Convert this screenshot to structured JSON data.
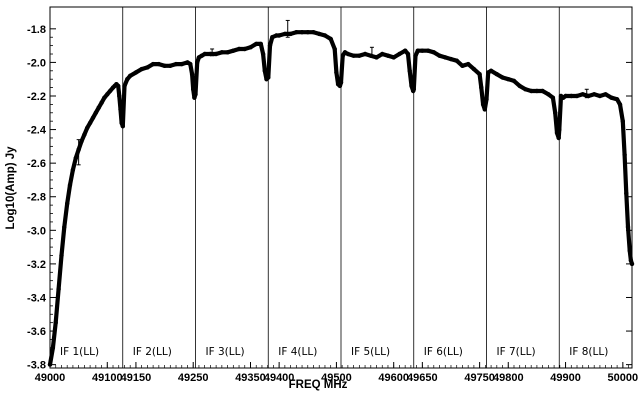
{
  "chart_data": {
    "type": "scatter",
    "title": "",
    "xlabel": "FREQ MHz",
    "ylabel": "Log10(Amp) Jy",
    "xlim": [
      49000,
      50016
    ],
    "ylim": [
      -3.82,
      -1.67
    ],
    "y_ticks": [
      {
        "value": -1.8,
        "label": "-1.8"
      },
      {
        "value": -2.0,
        "label": "-2.0"
      },
      {
        "value": -2.2,
        "label": "-2.2"
      },
      {
        "value": -2.4,
        "label": "-2.4"
      },
      {
        "value": -2.6,
        "label": "-2.6"
      },
      {
        "value": -2.8,
        "label": "-2.8"
      },
      {
        "value": -3.0,
        "label": "-3.0"
      },
      {
        "value": -3.2,
        "label": "-3.2"
      },
      {
        "value": -3.4,
        "label": "-3.4"
      },
      {
        "value": -3.6,
        "label": "-3.6"
      },
      {
        "value": -3.8,
        "label": "-3.8"
      }
    ],
    "x_ticks": [
      {
        "value": 49000,
        "label": "49000"
      },
      {
        "value": 49100,
        "label": "49100"
      },
      {
        "value": 49150,
        "label": "49150"
      },
      {
        "value": 49250,
        "label": "49250"
      },
      {
        "value": 49350,
        "label": "49350"
      },
      {
        "value": 49400,
        "label": "49400"
      },
      {
        "value": 49500,
        "label": "49500"
      },
      {
        "value": 49600,
        "label": "49600"
      },
      {
        "value": 49650,
        "label": "49650"
      },
      {
        "value": 49750,
        "label": "49750"
      },
      {
        "value": 49800,
        "label": "49800"
      },
      {
        "value": 49900,
        "label": "49900"
      },
      {
        "value": 50000,
        "label": "50000"
      }
    ],
    "grid": false,
    "if_windows": [
      {
        "name": "IF 1(LL)",
        "start": 49000,
        "end": 49127
      },
      {
        "name": "IF 2(LL)",
        "start": 49127,
        "end": 49254
      },
      {
        "name": "IF 3(LL)",
        "start": 49254,
        "end": 49381
      },
      {
        "name": "IF 4(LL)",
        "start": 49381,
        "end": 49508
      },
      {
        "name": "IF 5(LL)",
        "start": 49508,
        "end": 49635
      },
      {
        "name": "IF 6(LL)",
        "start": 49635,
        "end": 49762
      },
      {
        "name": "IF 7(LL)",
        "start": 49762,
        "end": 49889
      },
      {
        "name": "IF 8(LL)",
        "start": 49889,
        "end": 50016
      }
    ],
    "series": [
      {
        "x": [
          49000,
          49005,
          49010,
          49015,
          49020,
          49025,
          49030,
          49035,
          49040,
          49045,
          49050,
          49055,
          49060,
          49065,
          49070,
          49075,
          49080,
          49085,
          49090,
          49095,
          49100,
          49105,
          49110,
          49113,
          49116,
          49119,
          49121,
          49123,
          49125,
          49127,
          49130,
          49135,
          49140,
          49150,
          49160,
          49170,
          49180,
          49190,
          49200,
          49210,
          49220,
          49230,
          49240,
          49245,
          49248,
          49250,
          49252,
          49254,
          49257,
          49260,
          49265,
          49270,
          49280,
          49290,
          49300,
          49310,
          49320,
          49330,
          49340,
          49350,
          49360,
          49368,
          49372,
          49375,
          49378,
          49381,
          49384,
          49388,
          49395,
          49400,
          49410,
          49420,
          49430,
          49440,
          49450,
          49460,
          49470,
          49480,
          49490,
          49497,
          49500,
          49503,
          49506,
          49508,
          49511,
          49515,
          49520,
          49530,
          49540,
          49550,
          49560,
          49570,
          49580,
          49590,
          49600,
          49610,
          49620,
          49625,
          49628,
          49631,
          49634,
          49635,
          49638,
          49642,
          49650,
          49660,
          49670,
          49680,
          49690,
          49700,
          49710,
          49720,
          49730,
          49740,
          49750,
          49753,
          49756,
          49759,
          49762,
          49765,
          49770,
          49780,
          49790,
          49800,
          49810,
          49820,
          49830,
          49840,
          49850,
          49860,
          49870,
          49878,
          49882,
          49885,
          49888,
          49889,
          49892,
          49896,
          49900,
          49910,
          49920,
          49930,
          49940,
          49950,
          49960,
          49970,
          49980,
          49990,
          49995,
          50000,
          50003,
          50006,
          50009,
          50012,
          50014,
          50016
        ],
        "y": [
          -3.8,
          -3.7,
          -3.55,
          -3.35,
          -3.15,
          -2.98,
          -2.84,
          -2.73,
          -2.64,
          -2.57,
          -2.52,
          -2.47,
          -2.43,
          -2.39,
          -2.36,
          -2.33,
          -2.3,
          -2.27,
          -2.24,
          -2.21,
          -2.19,
          -2.17,
          -2.15,
          -2.14,
          -2.13,
          -2.14,
          -2.2,
          -2.28,
          -2.36,
          -2.38,
          -2.14,
          -2.1,
          -2.08,
          -2.06,
          -2.04,
          -2.03,
          -2.01,
          -2.01,
          -2.02,
          -2.02,
          -2.01,
          -2.01,
          -2.0,
          -2.01,
          -2.07,
          -2.16,
          -2.21,
          -2.19,
          -2.0,
          -1.97,
          -1.96,
          -1.95,
          -1.95,
          -1.95,
          -1.94,
          -1.94,
          -1.93,
          -1.92,
          -1.92,
          -1.91,
          -1.89,
          -1.89,
          -1.95,
          -2.05,
          -2.1,
          -2.09,
          -1.9,
          -1.85,
          -1.84,
          -1.84,
          -1.83,
          -1.83,
          -1.82,
          -1.82,
          -1.82,
          -1.82,
          -1.83,
          -1.84,
          -1.86,
          -1.92,
          -2.06,
          -2.13,
          -2.14,
          -2.12,
          -1.96,
          -1.94,
          -1.95,
          -1.96,
          -1.96,
          -1.95,
          -1.96,
          -1.97,
          -1.95,
          -1.96,
          -1.97,
          -1.95,
          -1.93,
          -1.95,
          -2.05,
          -2.14,
          -2.17,
          -2.16,
          -1.96,
          -1.93,
          -1.93,
          -1.93,
          -1.94,
          -1.96,
          -1.97,
          -1.98,
          -1.99,
          -2.02,
          -2.01,
          -2.04,
          -2.07,
          -2.15,
          -2.25,
          -2.28,
          -2.22,
          -2.06,
          -2.05,
          -2.07,
          -2.09,
          -2.1,
          -2.11,
          -2.14,
          -2.16,
          -2.17,
          -2.17,
          -2.17,
          -2.19,
          -2.21,
          -2.3,
          -2.42,
          -2.45,
          -2.4,
          -2.2,
          -2.21,
          -2.2,
          -2.2,
          -2.2,
          -2.19,
          -2.2,
          -2.19,
          -2.2,
          -2.19,
          -2.21,
          -2.22,
          -2.25,
          -2.35,
          -2.55,
          -2.78,
          -2.98,
          -3.12,
          -3.18,
          -3.2
        ]
      }
    ],
    "error_bars": [
      {
        "x": 49050,
        "y": -2.53,
        "low": -2.61,
        "high": -2.46
      },
      {
        "x": 49283,
        "y": -1.94,
        "low": -1.96,
        "high": -1.92
      },
      {
        "x": 49415,
        "y": -1.81,
        "low": -1.85,
        "high": -1.75
      },
      {
        "x": 49562,
        "y": -1.94,
        "low": -1.96,
        "high": -1.91
      },
      {
        "x": 49937,
        "y": -2.19,
        "low": -2.21,
        "high": -2.16
      }
    ]
  }
}
